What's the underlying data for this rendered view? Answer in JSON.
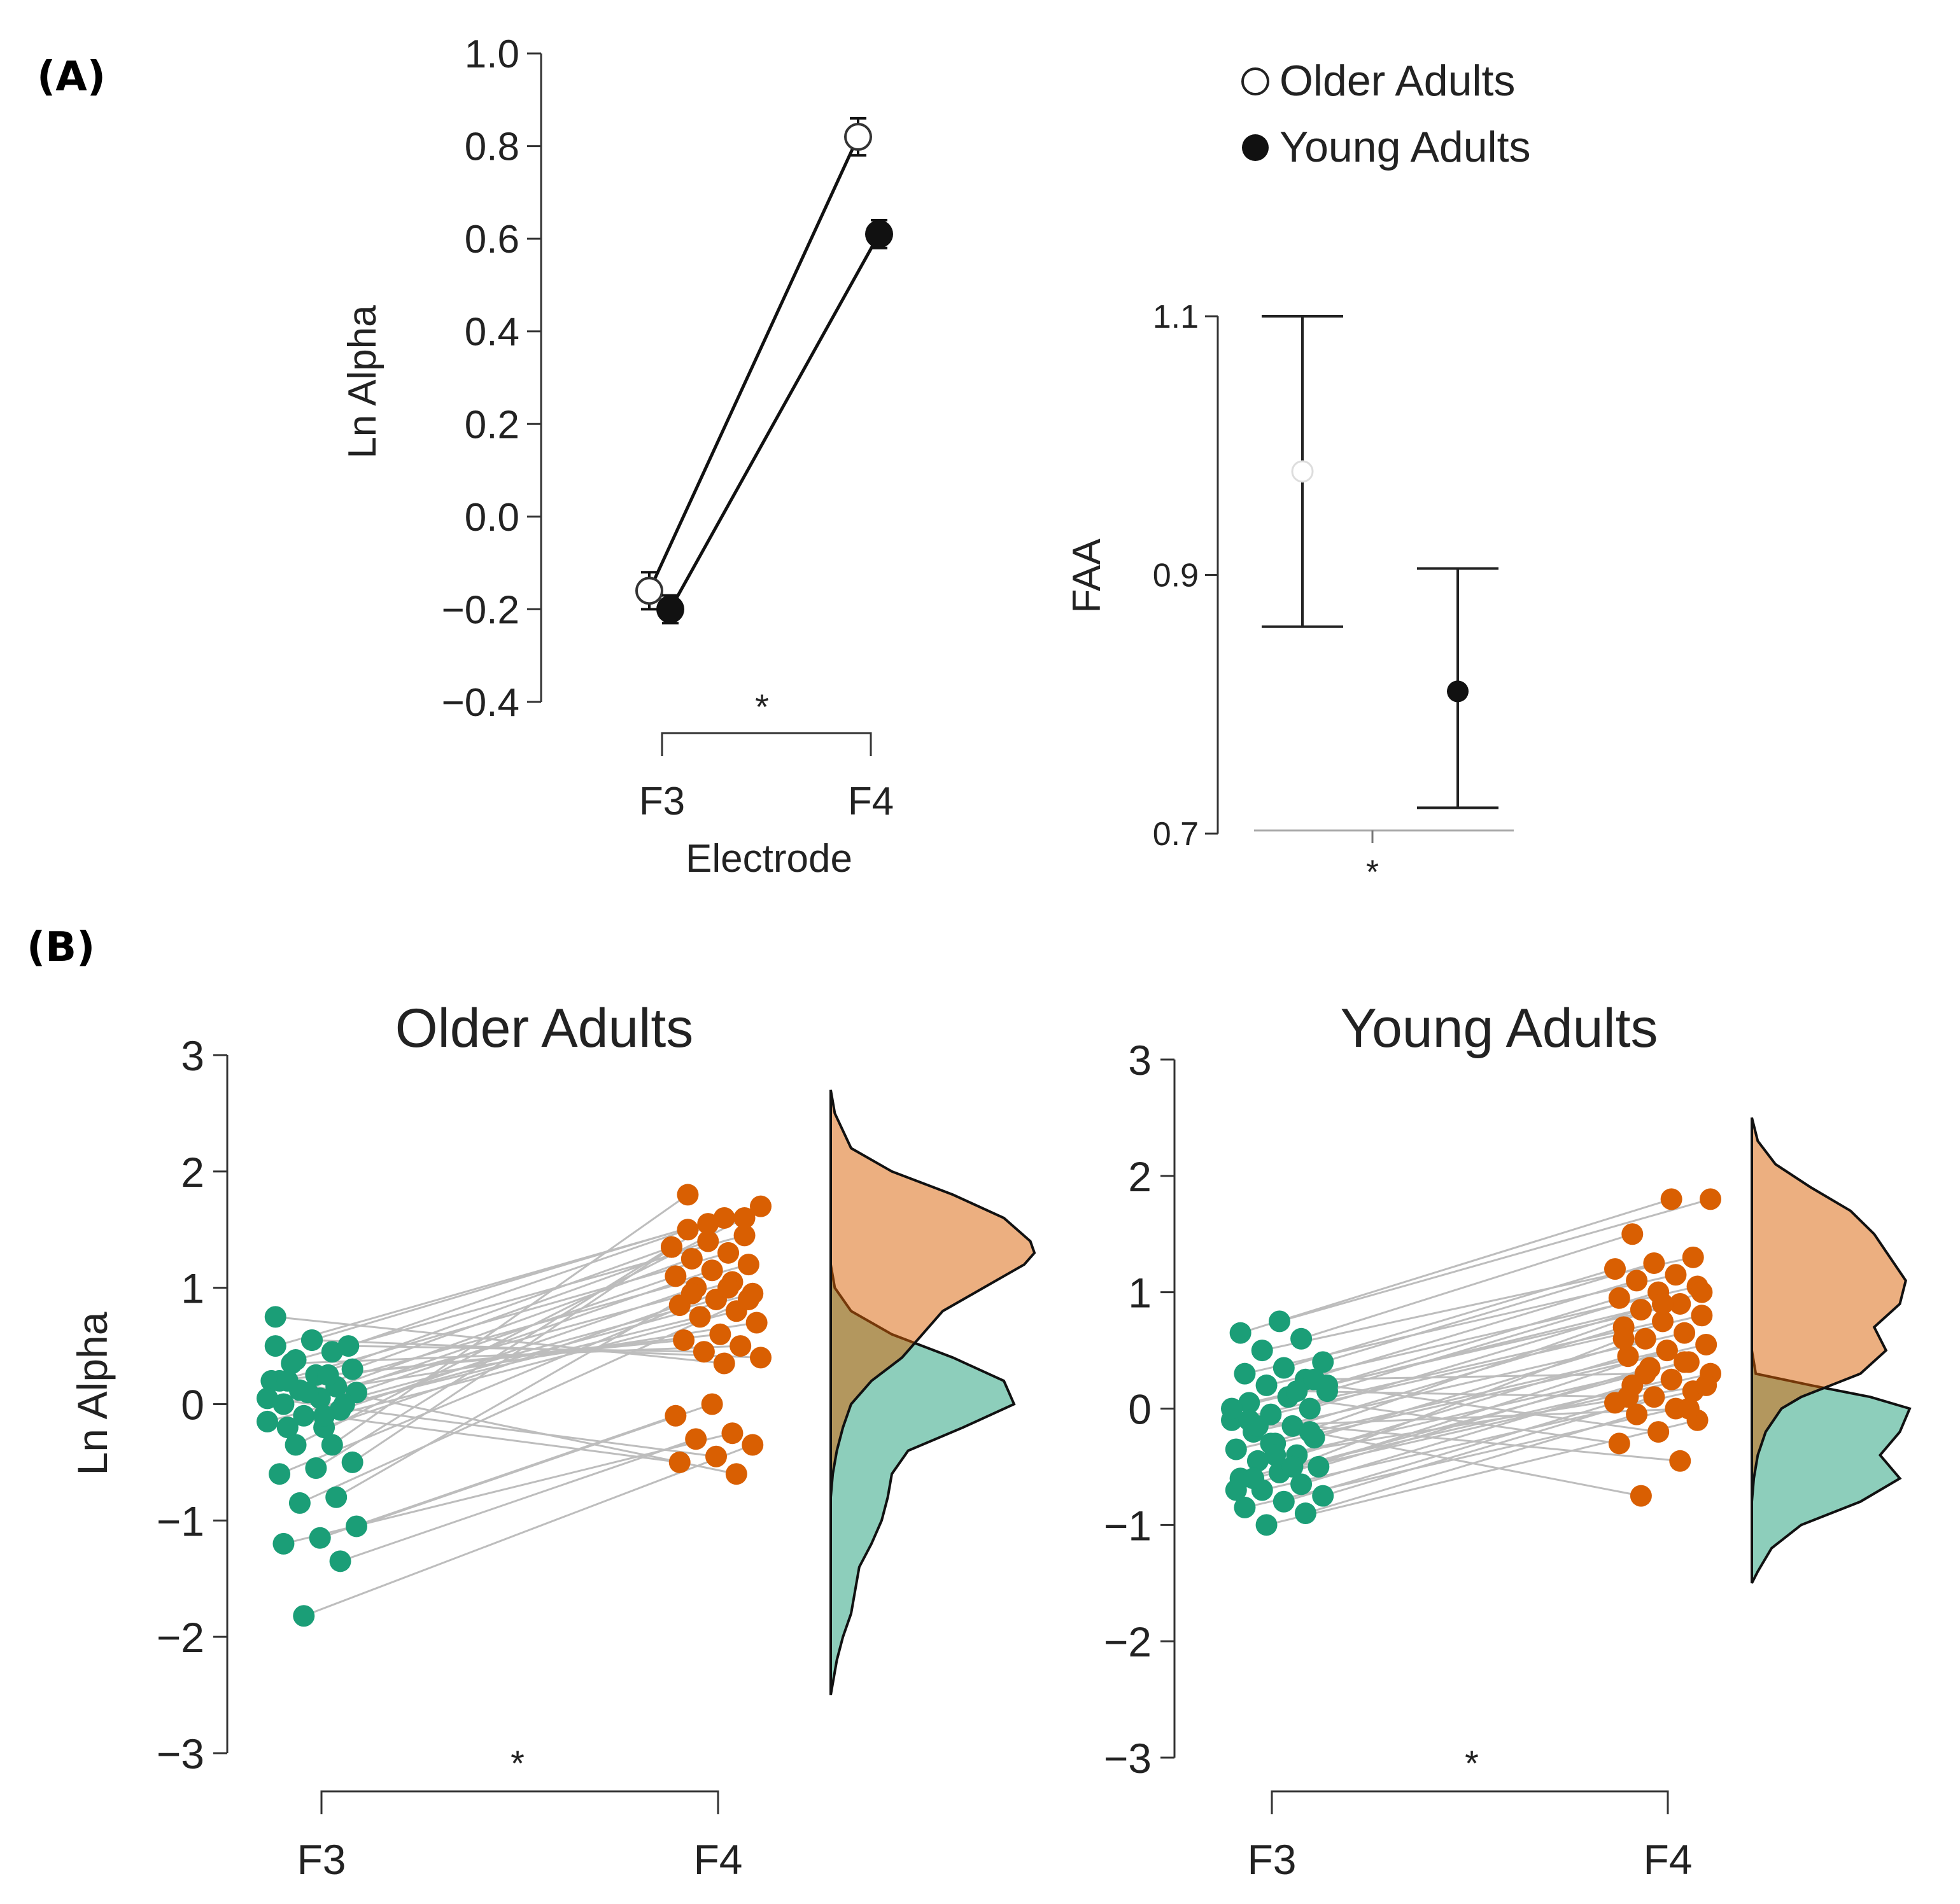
{
  "panel_labels": {
    "a": "(A)",
    "b": "(B)"
  },
  "colors": {
    "green": "#1b9e77",
    "orange": "#d95f02",
    "green_fill": "#1b9e77",
    "orange_fill": "#d95f02",
    "line_gray": "#bdbdbd",
    "axis": "#333333"
  },
  "chart_data": [
    {
      "id": "A_line",
      "type": "line",
      "xlabel": "Electrode",
      "ylabel": "Ln Alpha",
      "categories": [
        "F3",
        "F4"
      ],
      "ylim": [
        -0.4,
        1.0
      ],
      "yticks": [
        1.0,
        0.8,
        0.6,
        0.4,
        0.2,
        0.0,
        -0.2,
        -0.4
      ],
      "ytick_labels": [
        "1.0",
        "0.8",
        "0.6",
        "0.4",
        "0.2",
        "0.0",
        "−0.2",
        "−0.4"
      ],
      "significance": "*",
      "series": [
        {
          "name": "Older Adults",
          "marker": "open",
          "values": [
            -0.16,
            0.82
          ],
          "errors": [
            0.04,
            0.04
          ]
        },
        {
          "name": "Young Adults",
          "marker": "filled",
          "values": [
            -0.2,
            0.61
          ],
          "errors": [
            0.03,
            0.03
          ]
        }
      ]
    },
    {
      "id": "A_faa",
      "type": "scatter",
      "ylabel": "FAA",
      "ylim": [
        0.7,
        1.1
      ],
      "yticks": [
        1.1,
        0.9,
        0.7
      ],
      "ytick_labels": [
        "1.1",
        "0.9",
        "0.7"
      ],
      "significance": "*",
      "series": [
        {
          "name": "Older Adults",
          "marker": "open",
          "value": 0.98,
          "ci": [
            0.86,
            1.1
          ]
        },
        {
          "name": "Young Adults",
          "marker": "filled",
          "value": 0.81,
          "ci": [
            0.72,
            0.905
          ]
        }
      ]
    },
    {
      "id": "B_older",
      "type": "scatter",
      "title": "Older Adults",
      "ylabel": "Ln Alpha",
      "categories": [
        "F3",
        "F4"
      ],
      "ylim": [
        -3,
        3
      ],
      "yticks": [
        3,
        2,
        1,
        0,
        -1,
        -2,
        -3
      ],
      "ytick_labels": [
        "3",
        "2",
        "1",
        "0",
        "−1",
        "−2",
        "−3"
      ],
      "significance": "*",
      "f3": [
        0.55,
        0.5,
        0.45,
        0.38,
        0.3,
        0.25,
        0.2,
        0.15,
        0.12,
        0.1,
        0.05,
        0.0,
        -0.05,
        -0.1,
        -0.15,
        -0.2,
        -0.2,
        0.0,
        0.1,
        0.2,
        0.25,
        0.35,
        0.5,
        0.55,
        0.75,
        -0.35,
        -0.35,
        -0.5,
        -0.55,
        -0.6,
        -0.8,
        -0.85,
        -1.05,
        -1.15,
        -1.2,
        -1.35,
        -1.82,
        0.05,
        -0.1,
        0.2
      ],
      "f4": [
        1.7,
        1.6,
        1.5,
        1.45,
        1.4,
        1.35,
        1.3,
        1.25,
        1.2,
        1.15,
        1.1,
        1.05,
        1.0,
        0.95,
        0.9,
        0.85,
        0.8,
        0.75,
        0.7,
        0.6,
        0.55,
        0.5,
        0.45,
        0.4,
        0.35,
        1.8,
        1.6,
        1.55,
        1.35,
        1.0,
        0.95,
        0.9,
        0.0,
        -0.1,
        -0.25,
        -0.3,
        -0.35,
        -0.45,
        -0.5,
        -0.6
      ],
      "density": {
        "y": [
          2.7,
          2.5,
          2.2,
          2.0,
          1.8,
          1.6,
          1.4,
          1.3,
          1.2,
          1.0,
          0.8,
          0.6,
          0.4,
          0.2,
          0.0,
          -0.2,
          -0.4,
          -0.6,
          -0.8,
          -1.0,
          -1.2,
          -1.4,
          -1.6,
          -1.8,
          -2.0,
          -2.2,
          -2.4,
          -2.5
        ],
        "f4": [
          0.0,
          0.02,
          0.1,
          0.3,
          0.6,
          0.85,
          0.98,
          1.0,
          0.95,
          0.75,
          0.55,
          0.45,
          0.35,
          0.2,
          0.1,
          0.06,
          0.03,
          0.01,
          0.0,
          0.0,
          0.0,
          0.0,
          0.0,
          0.0,
          0.0,
          0.0,
          0.0,
          0.0
        ],
        "f3": [
          0.0,
          0.0,
          0.0,
          0.0,
          0.0,
          0.0,
          0.0,
          0.0,
          0.0,
          0.02,
          0.1,
          0.3,
          0.6,
          0.85,
          0.9,
          0.65,
          0.38,
          0.3,
          0.28,
          0.25,
          0.2,
          0.14,
          0.12,
          0.1,
          0.06,
          0.03,
          0.01,
          0.0
        ]
      }
    },
    {
      "id": "B_young",
      "type": "scatter",
      "title": "Young Adults",
      "ylabel": "",
      "categories": [
        "F3",
        "F4"
      ],
      "ylim": [
        -3,
        3
      ],
      "yticks": [
        3,
        2,
        1,
        0,
        -1,
        -2,
        -3
      ],
      "ytick_labels": [
        "3",
        "2",
        "1",
        "0",
        "−1",
        "−2",
        "−3"
      ],
      "significance": "*",
      "f3": [
        0.75,
        0.65,
        0.6,
        0.5,
        0.4,
        0.35,
        0.3,
        0.25,
        0.2,
        0.15,
        0.1,
        0.05,
        0.0,
        -0.05,
        -0.1,
        -0.15,
        -0.2,
        -0.25,
        -0.3,
        -0.35,
        -0.4,
        -0.45,
        -0.5,
        -0.55,
        -0.6,
        -0.65,
        -0.7,
        -0.75,
        -0.8,
        -0.85,
        -0.9,
        -1.0,
        0.2,
        0.1,
        -0.1,
        -0.2,
        -0.3,
        0.0,
        -0.5,
        -0.6,
        0.25,
        -0.4,
        -0.7,
        0.15,
        -0.15
      ],
      "f4": [
        1.8,
        1.8,
        1.5,
        1.3,
        1.25,
        1.2,
        1.15,
        1.1,
        1.05,
        1.0,
        0.95,
        0.9,
        0.85,
        0.8,
        0.75,
        0.7,
        0.65,
        0.6,
        0.55,
        0.5,
        0.45,
        0.4,
        0.35,
        0.3,
        0.25,
        0.2,
        0.15,
        0.1,
        0.05,
        0.0,
        -0.05,
        -0.1,
        -0.2,
        -0.3,
        -0.45,
        -0.75,
        1.0,
        0.9,
        0.6,
        0.4,
        0.3,
        0.2,
        0.5,
        0.1,
        0.0
      ],
      "density": {
        "y": [
          2.5,
          2.3,
          2.1,
          1.9,
          1.7,
          1.5,
          1.3,
          1.1,
          0.9,
          0.7,
          0.5,
          0.3,
          0.2,
          0.1,
          0.0,
          -0.2,
          -0.4,
          -0.6,
          -0.8,
          -1.0,
          -1.2,
          -1.4,
          -1.5
        ],
        "f4": [
          0.0,
          0.03,
          0.12,
          0.3,
          0.5,
          0.62,
          0.7,
          0.78,
          0.75,
          0.62,
          0.68,
          0.55,
          0.4,
          0.25,
          0.15,
          0.07,
          0.03,
          0.01,
          0.0,
          0.0,
          0.0,
          0.0,
          0.0
        ],
        "f3": [
          0.0,
          0.0,
          0.0,
          0.0,
          0.0,
          0.0,
          0.0,
          0.0,
          0.0,
          0.0,
          0.0,
          0.02,
          0.3,
          0.6,
          0.8,
          0.75,
          0.65,
          0.75,
          0.55,
          0.25,
          0.1,
          0.03,
          0.0
        ]
      }
    }
  ]
}
